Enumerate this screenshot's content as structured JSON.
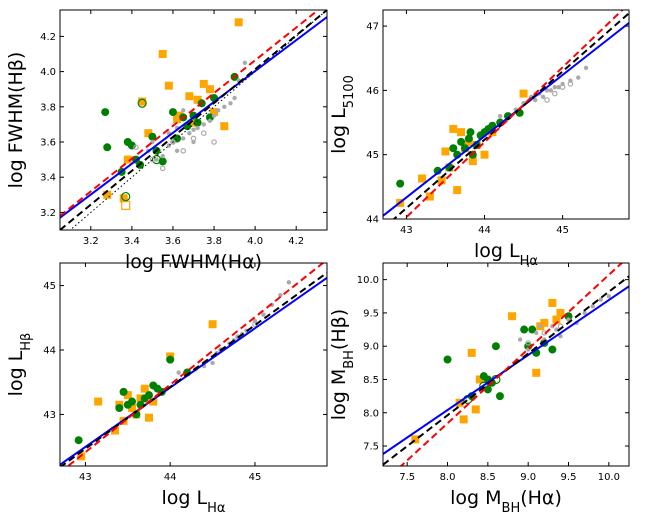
{
  "chart_data": [
    {
      "type": "scatter",
      "xlabel": "log FWHM(Hα)",
      "ylabel": "log FWHM(Hβ)",
      "xlim": [
        3.05,
        4.35
      ],
      "ylim": [
        3.1,
        4.35
      ],
      "xticks": [
        "3.2",
        "3.4",
        "3.6",
        "3.8",
        "4.0",
        "4.2"
      ],
      "xtick_values": [
        3.2,
        3.4,
        3.6,
        3.8,
        4.0,
        4.2
      ],
      "yticks": [
        "3.2",
        "3.4",
        "3.6",
        "3.8",
        "4.0",
        "4.2"
      ],
      "ytick_values": [
        3.2,
        3.4,
        3.6,
        3.8,
        4.0,
        4.2
      ],
      "grid": false,
      "series": [
        {
          "marker": "square",
          "filled": true,
          "color": "#FFA500",
          "x": [
            3.55,
            3.58,
            3.63,
            3.68,
            3.72,
            3.75,
            3.78,
            3.85,
            3.92,
            3.28,
            3.36,
            3.45,
            3.48,
            3.62,
            3.7,
            3.8,
            3.38
          ],
          "y": [
            4.1,
            3.92,
            3.75,
            3.86,
            3.84,
            3.93,
            3.9,
            3.69,
            4.28,
            3.3,
            3.28,
            3.83,
            3.65,
            3.73,
            3.71,
            3.77,
            3.5
          ]
        },
        {
          "marker": "square",
          "filled": false,
          "color": "#FFA500",
          "x": [
            3.37
          ],
          "y": [
            3.24
          ]
        },
        {
          "marker": "circle",
          "filled": true,
          "color": "#008000",
          "x": [
            3.27,
            3.28,
            3.35,
            3.38,
            3.4,
            3.42,
            3.5,
            3.55,
            3.6,
            3.62,
            3.65,
            3.7,
            3.72,
            3.78,
            3.8,
            3.9,
            3.44,
            3.52,
            3.67,
            3.74
          ],
          "y": [
            3.77,
            3.57,
            3.43,
            3.6,
            3.58,
            3.5,
            3.63,
            3.49,
            3.77,
            3.62,
            3.74,
            3.75,
            3.71,
            3.74,
            3.85,
            3.97,
            3.47,
            3.55,
            3.69,
            3.82
          ]
        },
        {
          "marker": "circle",
          "filled": false,
          "color": "#008000",
          "x": [
            3.37,
            3.45,
            3.52
          ],
          "y": [
            3.29,
            3.82,
            3.5
          ]
        },
        {
          "marker": "circle",
          "filled": true,
          "color": "#aaaaaa",
          "x": [
            3.48,
            3.52,
            3.55,
            3.58,
            3.6,
            3.62,
            3.65,
            3.68,
            3.7,
            3.72,
            3.75,
            3.78,
            3.8,
            3.82,
            3.85,
            3.88,
            3.9,
            3.92,
            3.95,
            3.65,
            3.7,
            3.62,
            3.58,
            3.5
          ],
          "y": [
            3.55,
            3.5,
            3.52,
            3.58,
            3.6,
            3.55,
            3.62,
            3.65,
            3.6,
            3.68,
            3.7,
            3.72,
            3.75,
            3.78,
            3.8,
            3.82,
            3.85,
            3.95,
            4.05,
            3.78,
            3.67,
            3.68,
            3.65,
            3.6
          ]
        },
        {
          "marker": "circle",
          "filled": false,
          "color": "#aaaaaa",
          "x": [
            3.42,
            3.5,
            3.55,
            3.6,
            3.65,
            3.7,
            3.75,
            3.8
          ],
          "y": [
            3.57,
            3.5,
            3.45,
            3.6,
            3.55,
            3.62,
            3.65,
            3.6
          ]
        }
      ],
      "lines": [
        {
          "style": "dotted",
          "color": "#000000",
          "p1": [
            3.05,
            3.05
          ],
          "p2": [
            4.35,
            4.35
          ]
        },
        {
          "style": "solid",
          "color": "#0000ff",
          "p1": [
            3.05,
            3.17
          ],
          "p2": [
            4.35,
            4.31
          ]
        },
        {
          "style": "dashed",
          "color": "#000000",
          "p1": [
            3.05,
            3.1
          ],
          "p2": [
            4.35,
            4.35
          ]
        },
        {
          "style": "dashed",
          "color": "#ff0000",
          "p1": [
            3.05,
            3.18
          ],
          "p2": [
            4.35,
            4.39
          ]
        }
      ]
    },
    {
      "type": "scatter",
      "xlabel": "log L_Hα",
      "ylabel": "log L_5100",
      "xlim": [
        42.7,
        45.85
      ],
      "ylim": [
        44.0,
        47.25
      ],
      "xticks": [
        "43",
        "44",
        "45"
      ],
      "xtick_values": [
        43,
        44,
        45
      ],
      "yticks": [
        "44",
        "45",
        "46",
        "47"
      ],
      "ytick_values": [
        44,
        45,
        46,
        47
      ],
      "grid": false,
      "series": [
        {
          "marker": "square",
          "filled": true,
          "color": "#FFA500",
          "x": [
            42.92,
            43.2,
            43.3,
            43.45,
            43.55,
            43.6,
            43.7,
            43.75,
            43.8,
            43.85,
            43.9,
            44.0,
            44.1,
            44.5,
            43.5,
            43.65
          ],
          "y": [
            44.25,
            44.63,
            44.35,
            44.6,
            44.8,
            45.4,
            45.35,
            45.1,
            45.2,
            44.9,
            45.15,
            45.0,
            45.35,
            45.95,
            45.05,
            44.45
          ]
        },
        {
          "marker": "circle",
          "filled": true,
          "color": "#008000",
          "x": [
            42.92,
            43.4,
            43.55,
            43.6,
            43.7,
            43.75,
            43.8,
            43.85,
            43.9,
            43.95,
            44.0,
            44.05,
            44.1,
            44.2,
            44.3,
            44.45,
            43.65,
            43.82
          ],
          "y": [
            44.55,
            44.75,
            44.8,
            45.1,
            45.2,
            45.1,
            45.25,
            45.0,
            45.15,
            45.3,
            45.35,
            45.4,
            45.45,
            45.5,
            45.6,
            45.65,
            45.0,
            45.35
          ]
        },
        {
          "marker": "circle",
          "filled": true,
          "color": "#aaaaaa",
          "x": [
            44.2,
            44.4,
            44.5,
            44.6,
            44.7,
            44.8,
            44.9,
            45.0,
            45.1,
            45.2,
            45.3,
            44.65,
            44.75,
            44.85,
            44.95
          ],
          "y": [
            45.6,
            45.7,
            45.8,
            45.9,
            45.95,
            46.0,
            46.05,
            46.1,
            46.15,
            46.2,
            46.35,
            45.85,
            45.9,
            46.0,
            46.05
          ]
        },
        {
          "marker": "circle",
          "filled": false,
          "color": "#aaaaaa",
          "x": [
            44.8,
            44.9,
            45.0,
            45.1
          ],
          "y": [
            45.85,
            45.95,
            46.05,
            46.1
          ]
        }
      ],
      "lines": [
        {
          "style": "solid",
          "color": "#0000ff",
          "p1": [
            42.7,
            44.05
          ],
          "p2": [
            45.85,
            47.05
          ]
        },
        {
          "style": "dashed",
          "color": "#000000",
          "p1": [
            42.7,
            43.85
          ],
          "p2": [
            45.85,
            47.2
          ]
        },
        {
          "style": "dashed",
          "color": "#ff0000",
          "p1": [
            42.7,
            43.68
          ],
          "p2": [
            45.85,
            47.35
          ]
        }
      ]
    },
    {
      "type": "scatter",
      "xlabel": "log L_Hα",
      "ylabel": "log L_Hβ",
      "xlim": [
        42.7,
        45.85
      ],
      "ylim": [
        42.2,
        45.35
      ],
      "xticks": [
        "43",
        "44",
        "45"
      ],
      "xtick_values": [
        43,
        44,
        45
      ],
      "yticks": [
        "43",
        "44",
        "45"
      ],
      "ytick_values": [
        43,
        44,
        45
      ],
      "grid": false,
      "series": [
        {
          "marker": "square",
          "filled": true,
          "color": "#FFA500",
          "x": [
            42.95,
            43.15,
            43.35,
            43.4,
            43.5,
            43.55,
            43.6,
            43.65,
            43.7,
            43.75,
            43.8,
            44.0,
            44.5,
            43.45
          ],
          "y": [
            42.35,
            43.2,
            42.75,
            43.15,
            43.3,
            43.1,
            43.0,
            43.25,
            43.4,
            42.95,
            43.2,
            43.9,
            44.4,
            42.9
          ]
        },
        {
          "marker": "circle",
          "filled": true,
          "color": "#008000",
          "x": [
            42.92,
            43.4,
            43.45,
            43.55,
            43.6,
            43.65,
            43.7,
            43.75,
            43.8,
            43.85,
            43.9,
            44.0,
            44.2,
            43.5
          ],
          "y": [
            42.6,
            43.1,
            43.35,
            43.2,
            43.0,
            43.15,
            43.25,
            43.3,
            43.45,
            43.4,
            43.35,
            43.85,
            43.65,
            43.15
          ]
        },
        {
          "marker": "circle",
          "filled": true,
          "color": "#aaaaaa",
          "x": [
            44.1,
            44.3,
            44.5,
            44.6,
            44.7,
            44.8,
            44.9,
            45.0,
            45.1,
            45.2,
            45.3,
            45.4,
            44.4,
            44.55,
            44.75,
            44.85
          ],
          "y": [
            43.65,
            43.7,
            43.8,
            44.0,
            44.1,
            44.2,
            44.3,
            44.45,
            44.55,
            44.7,
            44.85,
            45.05,
            43.75,
            43.95,
            44.15,
            44.25
          ]
        },
        {
          "marker": "circle",
          "filled": false,
          "color": "#aaaaaa",
          "x": [
            44.6,
            44.8,
            45.0
          ],
          "y": [
            44.0,
            44.2,
            44.4
          ]
        }
      ],
      "lines": [
        {
          "style": "solid",
          "color": "#0000ff",
          "p1": [
            42.7,
            42.22
          ],
          "p2": [
            45.85,
            45.12
          ]
        },
        {
          "style": "dashed",
          "color": "#000000",
          "p1": [
            42.7,
            42.18
          ],
          "p2": [
            45.85,
            45.2
          ]
        },
        {
          "style": "dashed",
          "color": "#ff0000",
          "p1": [
            42.7,
            42.1
          ],
          "p2": [
            45.85,
            45.4
          ]
        }
      ]
    },
    {
      "type": "scatter",
      "xlabel": "log M_BH(Hα)",
      "ylabel": "log M_BH(Hβ)",
      "xlim": [
        7.2,
        10.25
      ],
      "ylim": [
        7.2,
        10.25
      ],
      "xticks": [
        "7.5",
        "8.0",
        "8.5",
        "9.0",
        "9.5",
        "10.0"
      ],
      "xtick_values": [
        7.5,
        8.0,
        8.5,
        9.0,
        9.5,
        10.0
      ],
      "yticks": [
        "7.5",
        "8.0",
        "8.5",
        "9.0",
        "9.5",
        "10.0"
      ],
      "ytick_values": [
        7.5,
        8.0,
        8.5,
        9.0,
        9.5,
        10.0
      ],
      "grid": false,
      "series": [
        {
          "marker": "square",
          "filled": true,
          "color": "#FFA500",
          "x": [
            7.6,
            8.15,
            8.2,
            8.3,
            8.4,
            8.8,
            9.1,
            9.15,
            9.2,
            9.3,
            9.35,
            9.4,
            8.35
          ],
          "y": [
            7.6,
            8.15,
            7.9,
            8.9,
            8.5,
            9.45,
            8.6,
            9.3,
            9.35,
            9.65,
            9.4,
            9.5,
            8.05
          ]
        },
        {
          "marker": "circle",
          "filled": true,
          "color": "#008000",
          "x": [
            8.0,
            8.3,
            8.45,
            8.5,
            8.55,
            8.6,
            8.65,
            9.0,
            9.05,
            9.1,
            9.2,
            9.3,
            9.5,
            8.95,
            8.5
          ],
          "y": [
            8.8,
            8.25,
            8.55,
            8.35,
            8.45,
            9.0,
            8.25,
            9.0,
            9.25,
            8.9,
            9.05,
            8.95,
            9.45,
            9.25,
            8.5
          ]
        },
        {
          "marker": "circle",
          "filled": false,
          "color": "#008000",
          "x": [
            8.25,
            8.45,
            8.6
          ],
          "y": [
            8.2,
            8.4,
            8.5
          ]
        },
        {
          "marker": "circle",
          "filled": true,
          "color": "#aaaaaa",
          "x": [
            8.9,
            9.0,
            9.1,
            9.2,
            9.3,
            9.4,
            9.5,
            9.6,
            9.7,
            9.8,
            9.9,
            10.0,
            9.15,
            9.35
          ],
          "y": [
            9.1,
            8.95,
            9.2,
            9.1,
            9.3,
            9.15,
            9.4,
            9.35,
            9.5,
            9.6,
            9.7,
            9.75,
            9.3,
            9.25
          ]
        },
        {
          "marker": "circle",
          "filled": false,
          "color": "#aaaaaa",
          "x": [
            9.0,
            9.2,
            9.4
          ],
          "y": [
            9.05,
            9.2,
            9.3
          ]
        }
      ],
      "lines": [
        {
          "style": "solid",
          "color": "#0000ff",
          "p1": [
            7.2,
            7.38
          ],
          "p2": [
            10.25,
            9.9
          ]
        },
        {
          "style": "dashed",
          "color": "#000000",
          "p1": [
            7.2,
            7.22
          ],
          "p2": [
            10.25,
            10.05
          ]
        },
        {
          "style": "dashed",
          "color": "#ff0000",
          "p1": [
            7.2,
            6.95
          ],
          "p2": [
            10.25,
            10.35
          ]
        }
      ]
    }
  ]
}
